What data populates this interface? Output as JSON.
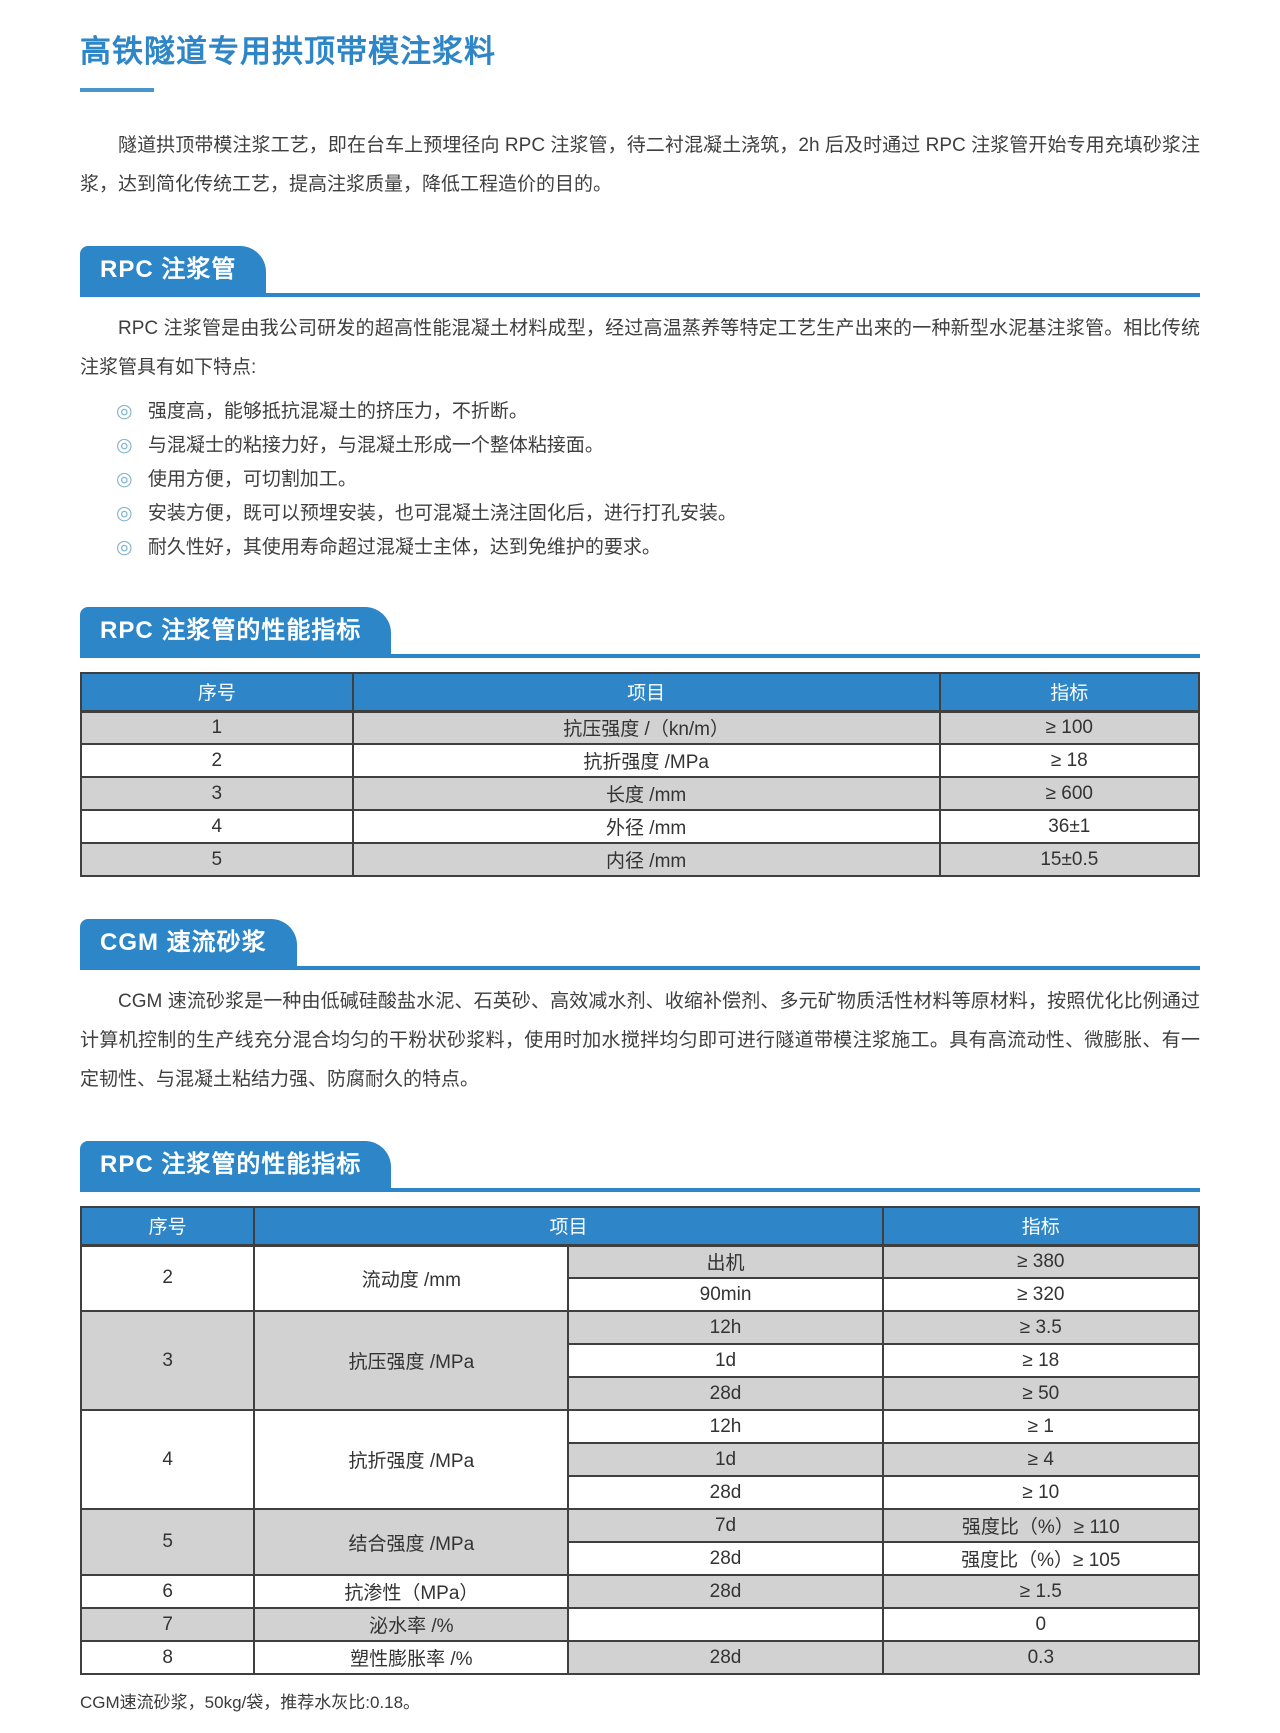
{
  "page": {
    "title": "高铁隧道专用拱顶带模注浆料",
    "intro": "隧道拱顶带模注浆工艺，即在台车上预埋径向 RPC 注浆管，待二衬混凝土浇筑，2h 后及时通过 RPC 注浆管开始专用充填砂浆注浆，达到简化传统工艺，提高注浆质量，降低工程造价的目的。"
  },
  "colors": {
    "accent_blue": "#2c86c8",
    "table_header_blue": "#2e86c8",
    "row_gray": "#d2d2d2",
    "bullet_blue": "#7fb3cc"
  },
  "rpc_section": {
    "badge": "RPC 注浆管",
    "body": "RPC 注浆管是由我公司研发的超高性能混凝土材料成型，经过高温蒸养等特定工艺生产出来的一种新型水泥基注浆管。相比传统注浆管具有如下特点:",
    "bullet_icon": "◎",
    "bullets": [
      "强度高，能够抵抗混凝土的挤压力，不折断。",
      "与混凝士的粘接力好，与混凝土形成一个整体粘接面。",
      "使用方便，可切割加工。",
      "安装方便，既可以预埋安装，也可混凝土浇注固化后，进行打孔安装。",
      "耐久性好，其使用寿命超过混凝士主体，达到免维护的要求。"
    ]
  },
  "rpc_table": {
    "badge": "RPC 注浆管的性能指标",
    "headers": [
      "序号",
      "项目",
      "指标"
    ],
    "rows": [
      [
        "1",
        "抗压强度 /（kn/m）",
        "≥ 100"
      ],
      [
        "2",
        "抗折强度 /MPa",
        "≥ 18"
      ],
      [
        "3",
        "长度 /mm",
        "≥ 600"
      ],
      [
        "4",
        "外径 /mm",
        "36±1"
      ],
      [
        "5",
        "内径 /mm",
        "15±0.5"
      ]
    ]
  },
  "cgm_section": {
    "badge": "CGM 速流砂浆",
    "body": "CGM 速流砂浆是一种由低碱硅酸盐水泥、石英砂、高效减水剂、收缩补偿剂、多元矿物质活性材料等原材料，按照优化比例通过计算机控制的生产线充分混合均匀的干粉状砂浆料，使用时加水搅拌均匀即可进行隧道带模注浆施工。具有高流动性、微膨胀、有一定韧性、与混凝土粘结力强、防腐耐久的特点。"
  },
  "cgm_table": {
    "badge": "RPC 注浆管的性能指标",
    "headers": [
      "序号",
      "项目",
      "指标"
    ],
    "groups": [
      {
        "no": "2",
        "item": "流动度 /mm",
        "subs": [
          {
            "time": "出机",
            "value": "≥ 380"
          },
          {
            "time": "90min",
            "value": "≥ 320"
          }
        ]
      },
      {
        "no": "3",
        "item": "抗压强度 /MPa",
        "subs": [
          {
            "time": "12h",
            "value": "≥ 3.5"
          },
          {
            "time": "1d",
            "value": "≥ 18"
          },
          {
            "time": "28d",
            "value": "≥ 50"
          }
        ]
      },
      {
        "no": "4",
        "item": "抗折强度 /MPa",
        "subs": [
          {
            "time": "12h",
            "value": "≥ 1"
          },
          {
            "time": "1d",
            "value": "≥ 4"
          },
          {
            "time": "28d",
            "value": "≥ 10"
          }
        ]
      },
      {
        "no": "5",
        "item": "结合强度 /MPa",
        "subs": [
          {
            "time": "7d",
            "value": "强度比（%）≥ 110"
          },
          {
            "time": "28d",
            "value": "强度比（%）≥ 105"
          }
        ]
      },
      {
        "no": "6",
        "item": "抗渗性（MPa）",
        "subs": [
          {
            "time": "28d",
            "value": "≥ 1.5"
          }
        ]
      },
      {
        "no": "7",
        "item": "泌水率 /%",
        "subs": [
          {
            "time": "",
            "value": "0"
          }
        ]
      },
      {
        "no": "8",
        "item": "塑性膨胀率 /%",
        "subs": [
          {
            "time": "28d",
            "value": "0.3"
          }
        ]
      }
    ]
  },
  "footer": {
    "note": "CGM速流砂浆，50kg/袋，推荐水灰比:0.18。"
  }
}
